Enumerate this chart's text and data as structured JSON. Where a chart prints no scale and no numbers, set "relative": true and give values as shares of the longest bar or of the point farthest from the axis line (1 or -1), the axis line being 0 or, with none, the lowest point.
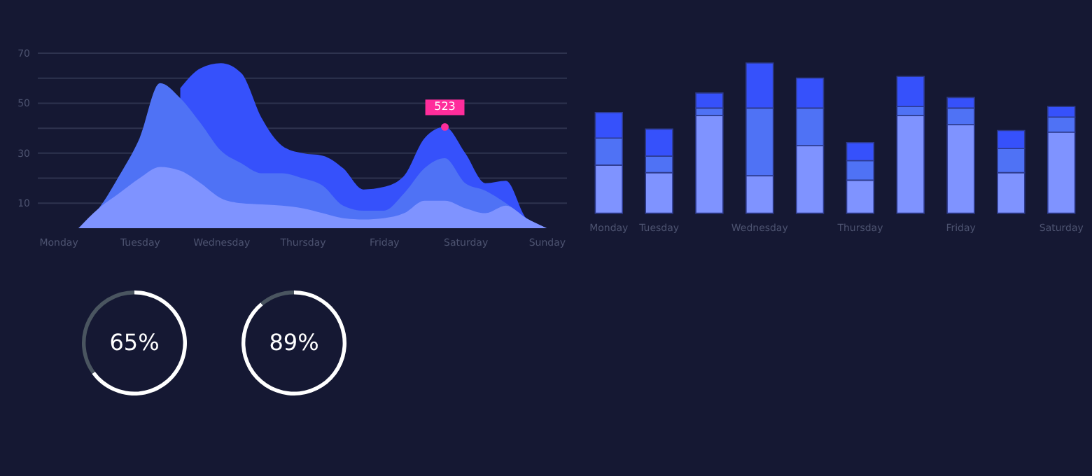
{
  "chart_data": [
    {
      "type": "area",
      "ylim": [
        0,
        70
      ],
      "grid": "y",
      "categories": [
        "Monday",
        null,
        null,
        null,
        "Tuesday",
        null,
        null,
        null,
        "Wednesday",
        null,
        null,
        null,
        "Thursday",
        null,
        null,
        null,
        "Friday",
        null,
        null,
        null,
        "Saturday",
        null,
        null,
        null,
        "Sunday"
      ],
      "yticks": [
        10,
        {
          "value": 20,
          "label": null
        },
        30,
        {
          "value": 40,
          "label": null
        },
        50,
        {
          "value": 60,
          "label": null
        },
        70
      ],
      "series": [
        {
          "color": "#3651fb",
          "values": [
            null,
            null,
            null,
            null,
            null,
            null,
            56,
            64,
            66,
            62,
            44,
            33,
            30,
            29,
            24,
            15.5,
            16.5,
            21,
            36,
            40.5,
            30,
            18,
            19,
            4,
            0
          ]
        },
        {
          "color": "#4f72f5",
          "values": [
            null,
            0,
            8,
            21,
            36,
            58,
            52,
            42,
            31,
            26,
            22,
            22,
            20,
            17,
            9,
            7,
            7,
            14,
            24,
            28,
            18,
            15,
            10,
            4,
            0
          ]
        },
        {
          "color": "#7f93ff",
          "values": [
            null,
            0,
            8,
            14,
            20,
            24.5,
            23,
            18,
            12,
            10,
            9.5,
            9,
            8,
            6,
            4,
            3.5,
            4,
            6,
            11,
            11,
            8,
            6,
            9,
            4,
            0
          ]
        }
      ],
      "annotations": [
        {
          "text": "523",
          "y": 40.5
        }
      ]
    },
    {
      "type": "bar",
      "stacked": true,
      "relative": true,
      "categories": [
        "Monday",
        "Tuesday",
        null,
        "Wednesday",
        null,
        "Thursday",
        null,
        "Friday",
        null,
        "Saturday"
      ],
      "series": [
        {
          "color": "#7f93ff",
          "values": [
            0.32,
            0.27,
            0.65,
            0.25,
            0.45,
            0.22,
            0.65,
            0.59,
            0.27,
            0.54
          ]
        },
        {
          "color": "#4f72f5",
          "values": [
            0.18,
            0.11,
            0.05,
            0.45,
            0.25,
            0.13,
            0.06,
            0.11,
            0.16,
            0.1
          ]
        },
        {
          "color": "#3651fb",
          "values": [
            0.17,
            0.18,
            0.1,
            0.3,
            0.2,
            0.12,
            0.2,
            0.07,
            0.12,
            0.07
          ]
        }
      ]
    },
    {
      "type": "donut",
      "categories": [
        null,
        null
      ],
      "values": [
        65,
        35
      ],
      "colors": [
        "#ffffff",
        "#4a5560"
      ],
      "value_labels": [
        "65%",
        null
      ]
    },
    {
      "type": "donut",
      "categories": [
        null,
        null
      ],
      "values": [
        89,
        11
      ],
      "colors": [
        "#ffffff",
        "#4a5560"
      ],
      "value_labels": [
        "89%",
        null
      ]
    }
  ]
}
